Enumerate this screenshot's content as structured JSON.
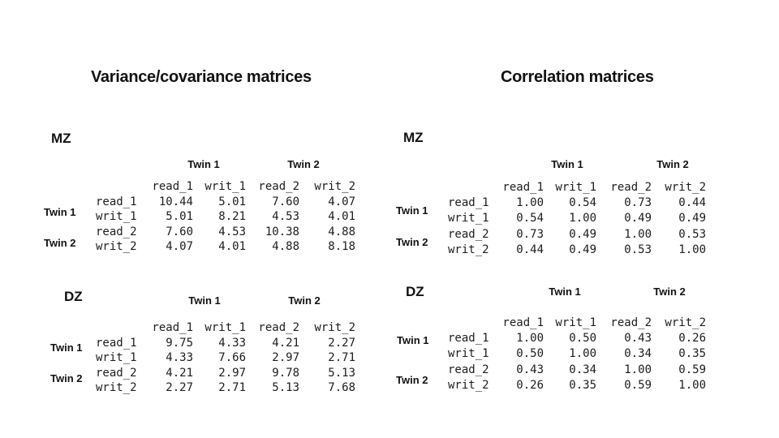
{
  "titles": {
    "left": "Variance/covariance matrices",
    "right": "Correlation matrices"
  },
  "matrices": [
    {
      "group_label": "MZ",
      "col_groups": [
        "Twin 1",
        "Twin 2"
      ],
      "row_groups": [
        "Twin 1",
        "Twin 2"
      ],
      "header": [
        "read_1",
        "writ_1",
        "read_2",
        "writ_2"
      ],
      "rows": [
        {
          "label": "read_1",
          "values": [
            "10.44",
            "5.01",
            "7.60",
            "4.07"
          ]
        },
        {
          "label": "writ_1",
          "values": [
            "5.01",
            "8.21",
            "4.53",
            "4.01"
          ]
        },
        {
          "label": "read_2",
          "values": [
            "7.60",
            "4.53",
            "10.38",
            "4.88"
          ]
        },
        {
          "label": "writ_2",
          "values": [
            "4.07",
            "4.01",
            "4.88",
            "8.18"
          ]
        }
      ]
    },
    {
      "group_label": "DZ",
      "col_groups": [
        "Twin 1",
        "Twin 2"
      ],
      "row_groups": [
        "Twin 1",
        "Twin 2"
      ],
      "header": [
        "read_1",
        "writ_1",
        "read_2",
        "writ_2"
      ],
      "rows": [
        {
          "label": "read_1",
          "values": [
            "9.75",
            "4.33",
            "4.21",
            "2.27"
          ]
        },
        {
          "label": "writ_1",
          "values": [
            "4.33",
            "7.66",
            "2.97",
            "2.71"
          ]
        },
        {
          "label": "read_2",
          "values": [
            "4.21",
            "2.97",
            "9.78",
            "5.13"
          ]
        },
        {
          "label": "writ_2",
          "values": [
            "2.27",
            "2.71",
            "5.13",
            "7.68"
          ]
        }
      ]
    },
    {
      "group_label": "MZ",
      "col_groups": [
        "Twin 1",
        "Twin 2"
      ],
      "row_groups": [
        "Twin 1",
        "Twin 2"
      ],
      "header": [
        "read_1",
        "writ_1",
        "read_2",
        "writ_2"
      ],
      "rows": [
        {
          "label": "read_1",
          "values": [
            "1.00",
            "0.54",
            "0.73",
            "0.44"
          ]
        },
        {
          "label": "writ_1",
          "values": [
            "0.54",
            "1.00",
            "0.49",
            "0.49"
          ]
        },
        {
          "label": "read_2",
          "values": [
            "0.73",
            "0.49",
            "1.00",
            "0.53"
          ]
        },
        {
          "label": "writ_2",
          "values": [
            "0.44",
            "0.49",
            "0.53",
            "1.00"
          ]
        }
      ]
    },
    {
      "group_label": "DZ",
      "col_groups": [
        "Twin 1",
        "Twin 2"
      ],
      "row_groups": [
        "Twin 1",
        "Twin 2"
      ],
      "header": [
        "read_1",
        "writ_1",
        "read_2",
        "writ_2"
      ],
      "rows": [
        {
          "label": "read_1",
          "values": [
            "1.00",
            "0.50",
            "0.43",
            "0.26"
          ]
        },
        {
          "label": "writ_1",
          "values": [
            "0.50",
            "1.00",
            "0.34",
            "0.35"
          ]
        },
        {
          "label": "read_2",
          "values": [
            "0.43",
            "0.34",
            "1.00",
            "0.59"
          ]
        },
        {
          "label": "writ_2",
          "values": [
            "0.26",
            "0.35",
            "0.59",
            "1.00"
          ]
        }
      ]
    }
  ]
}
